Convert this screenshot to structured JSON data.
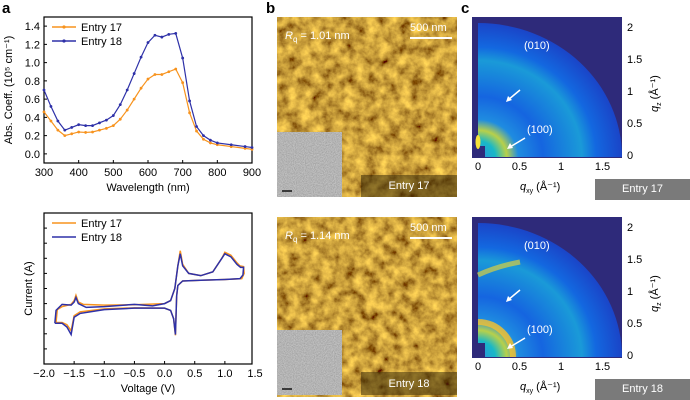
{
  "panel_labels": [
    "a",
    "b",
    "c"
  ],
  "chart_data": [
    {
      "type": "line",
      "id": "absorption",
      "xlabel": "Wavelength (nm)",
      "ylabel": "Abs. Coeff. (10⁵ cm⁻¹)",
      "xlim": [
        300,
        900
      ],
      "ylim": [
        -0.1,
        1.5
      ],
      "xticks": [
        300,
        400,
        500,
        600,
        700,
        800,
        900
      ],
      "yticks": [
        0.0,
        0.2,
        0.4,
        0.6,
        0.8,
        1.0,
        1.2,
        1.4
      ],
      "legend": "top-left",
      "x": [
        300,
        320,
        340,
        360,
        380,
        400,
        420,
        440,
        460,
        480,
        500,
        520,
        540,
        560,
        580,
        600,
        620,
        640,
        660,
        680,
        700,
        720,
        740,
        760,
        780,
        800,
        840,
        880,
        900
      ],
      "series": [
        {
          "name": "Entry 17",
          "color": "#f7931e",
          "values": [
            0.46,
            0.36,
            0.26,
            0.2,
            0.22,
            0.24,
            0.235,
            0.24,
            0.26,
            0.28,
            0.31,
            0.38,
            0.48,
            0.6,
            0.72,
            0.82,
            0.87,
            0.87,
            0.9,
            0.93,
            0.78,
            0.45,
            0.25,
            0.16,
            0.12,
            0.1,
            0.08,
            0.06,
            0.05
          ]
        },
        {
          "name": "Entry 18",
          "color": "#2e31a8",
          "values": [
            0.7,
            0.52,
            0.36,
            0.26,
            0.29,
            0.32,
            0.31,
            0.31,
            0.34,
            0.37,
            0.42,
            0.54,
            0.7,
            0.88,
            1.06,
            1.22,
            1.3,
            1.28,
            1.31,
            1.32,
            1.05,
            0.58,
            0.3,
            0.2,
            0.15,
            0.12,
            0.1,
            0.08,
            0.07
          ]
        }
      ]
    },
    {
      "type": "line",
      "id": "cyclic-voltammetry",
      "xlabel": "Voltage (V)",
      "ylabel": "Current (A)",
      "xlim": [
        -2.0,
        1.45
      ],
      "ylim": [
        0,
        10
      ],
      "xticks": [
        -2.0,
        -1.5,
        -1.0,
        -0.5,
        0.0,
        0.5,
        1.0,
        1.5
      ],
      "yticks": [
        1,
        2,
        3,
        4,
        5,
        6,
        7,
        8,
        9
      ],
      "legend": "top-left",
      "series": [
        {
          "name": "Entry 17",
          "color": "#f7931e",
          "points": [
            [
              -1.8,
              2.75
            ],
            [
              -1.78,
              3.6
            ],
            [
              -1.7,
              3.8
            ],
            [
              -1.55,
              3.95
            ],
            [
              -1.5,
              4.2
            ],
            [
              -1.47,
              4.55
            ],
            [
              -1.43,
              4.1
            ],
            [
              -1.35,
              3.95
            ],
            [
              -1.0,
              3.9
            ],
            [
              -0.5,
              3.92
            ],
            [
              0,
              4.0
            ],
            [
              0.1,
              4.2
            ],
            [
              0.17,
              5.0
            ],
            [
              0.22,
              6.5
            ],
            [
              0.26,
              7.5
            ],
            [
              0.3,
              6.6
            ],
            [
              0.4,
              6.0
            ],
            [
              0.6,
              5.85
            ],
            [
              0.8,
              6.1
            ],
            [
              0.95,
              7.0
            ],
            [
              1.0,
              7.4
            ],
            [
              1.1,
              7.2
            ],
            [
              1.2,
              6.7
            ],
            [
              1.25,
              6.5
            ],
            [
              1.31,
              6.45
            ],
            [
              1.32,
              6.0
            ],
            [
              1.28,
              5.65
            ],
            [
              1.0,
              5.6
            ],
            [
              0.6,
              5.55
            ],
            [
              0.3,
              5.5
            ],
            [
              0.22,
              5.2
            ],
            [
              0.2,
              4.5
            ],
            [
              0.18,
              1.9
            ],
            [
              0.15,
              3.0
            ],
            [
              0.1,
              3.55
            ],
            [
              0,
              3.7
            ],
            [
              -0.5,
              3.72
            ],
            [
              -1.0,
              3.65
            ],
            [
              -1.4,
              3.45
            ],
            [
              -1.5,
              3.2
            ],
            [
              -1.55,
              2.2
            ],
            [
              -1.62,
              2.6
            ],
            [
              -1.7,
              2.75
            ],
            [
              -1.8,
              2.75
            ]
          ]
        },
        {
          "name": "Entry 18",
          "color": "#2e31a8",
          "points": [
            [
              -1.82,
              2.7
            ],
            [
              -1.8,
              3.55
            ],
            [
              -1.7,
              3.95
            ],
            [
              -1.55,
              3.9
            ],
            [
              -1.5,
              4.1
            ],
            [
              -1.47,
              4.4
            ],
            [
              -1.43,
              4.0
            ],
            [
              -1.3,
              3.75
            ],
            [
              -1.0,
              3.8
            ],
            [
              -0.5,
              3.95
            ],
            [
              -0.2,
              3.85
            ],
            [
              0,
              4.0
            ],
            [
              0.1,
              4.2
            ],
            [
              0.17,
              5.0
            ],
            [
              0.22,
              6.5
            ],
            [
              0.26,
              7.3
            ],
            [
              0.3,
              6.5
            ],
            [
              0.4,
              6.0
            ],
            [
              0.6,
              5.85
            ],
            [
              0.8,
              6.1
            ],
            [
              0.95,
              7.0
            ],
            [
              1.0,
              7.3
            ],
            [
              1.1,
              7.1
            ],
            [
              1.2,
              6.6
            ],
            [
              1.26,
              6.4
            ],
            [
              1.31,
              6.4
            ],
            [
              1.3,
              5.9
            ],
            [
              1.25,
              5.65
            ],
            [
              1.0,
              5.6
            ],
            [
              0.6,
              5.55
            ],
            [
              0.3,
              5.5
            ],
            [
              0.22,
              5.2
            ],
            [
              0.2,
              4.5
            ],
            [
              0.18,
              1.95
            ],
            [
              0.15,
              3.0
            ],
            [
              0.1,
              3.55
            ],
            [
              0,
              3.7
            ],
            [
              -0.5,
              3.7
            ],
            [
              -1.0,
              3.6
            ],
            [
              -1.4,
              3.35
            ],
            [
              -1.5,
              3.1
            ],
            [
              -1.55,
              1.95
            ],
            [
              -1.62,
              2.45
            ],
            [
              -1.7,
              2.7
            ],
            [
              -1.82,
              2.7
            ]
          ]
        }
      ]
    }
  ],
  "afm": [
    {
      "rq": "R",
      "rq_sub": "q",
      "rq_value": " = 1.01 nm",
      "scale": "500 nm",
      "entry": "Entry 17"
    },
    {
      "rq": "R",
      "rq_sub": "q",
      "rq_value": " = 1.14 nm",
      "scale": "500 nm",
      "entry": "Entry 18"
    }
  ],
  "giwaxs": {
    "xlabel_q": "q",
    "xlabel_sub": "xy",
    "xlabel_unit": " (Å⁻¹)",
    "ylabel_q": "q",
    "ylabel_sub": "z",
    "ylabel_unit": " (Å⁻¹)",
    "xticks": [
      "0",
      "0.5",
      "1",
      "1.5"
    ],
    "yticks": [
      "0",
      "0.5",
      "1",
      "1.5",
      "2"
    ],
    "peak_010": "(010)",
    "peak_100": "(100)",
    "entries": [
      "Entry 17",
      "Entry 18"
    ]
  }
}
